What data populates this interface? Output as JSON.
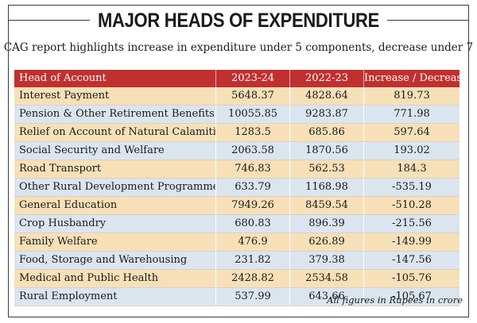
{
  "title": "MAJOR HEADS OF EXPENDITURE",
  "subtitle": "CAG report highlights increase in expenditure under 5 components, decrease under 7",
  "footnote": "All figures in Rupees in crore",
  "colors": {
    "header": "#c0302f",
    "row_odd": "#f7e0b8",
    "row_even": "#dbe5ef"
  },
  "chart_data": {
    "type": "table",
    "columns": [
      "Head of Account",
      "2023-24",
      "2022-23",
      "Increase / Decrease"
    ],
    "rows": [
      [
        "Interest Payment",
        "5648.37",
        "4828.64",
        "819.73"
      ],
      [
        "Pension & Other Retirement Benefits",
        "10055.85",
        "9283.87",
        "771.98"
      ],
      [
        "Relief on Account of Natural Calamities",
        "1283.5",
        "685.86",
        "597.64"
      ],
      [
        "Social Security and Welfare",
        "2063.58",
        "1870.56",
        "193.02"
      ],
      [
        "Road Transport",
        "746.83",
        "562.53",
        "184.3"
      ],
      [
        "Other Rural Development Programmes",
        "633.79",
        "1168.98",
        "-535.19"
      ],
      [
        "General Education",
        "7949.26",
        "8459.54",
        "-510.28"
      ],
      [
        "Crop Husbandry",
        "680.83",
        "896.39",
        "-215.56"
      ],
      [
        "Family Welfare",
        "476.9",
        "626.89",
        "-149.99"
      ],
      [
        "Food, Storage and Warehousing",
        "231.82",
        "379.38",
        "-147.56"
      ],
      [
        "Medical and Public Health",
        "2428.82",
        "2534.58",
        "-105.76"
      ],
      [
        "Rural Employment",
        "537.99",
        "643.66",
        "-105.67"
      ]
    ]
  }
}
